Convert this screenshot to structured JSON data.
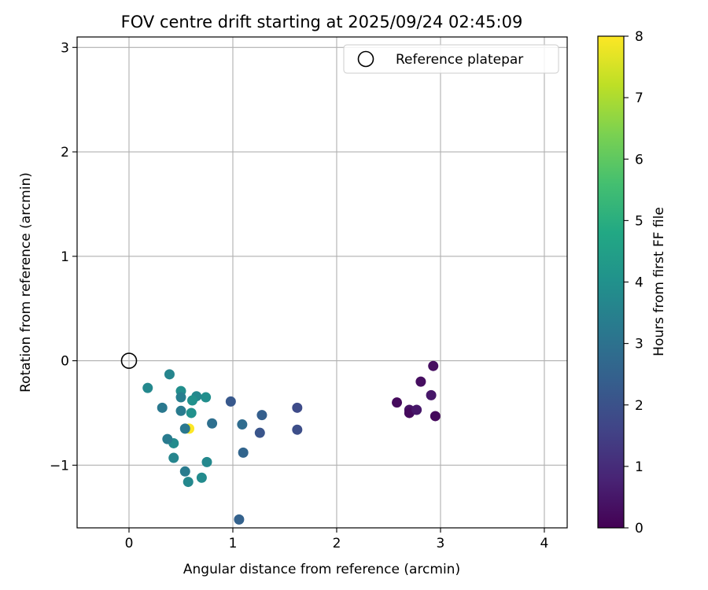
{
  "chart_data": {
    "type": "scatter",
    "title": "FOV centre drift starting at 2025/09/24 02:45:09",
    "xlabel": "Angular distance from reference (arcmin)",
    "ylabel": "Rotation from reference (arcmin)",
    "xlim": [
      -0.5,
      4.22
    ],
    "ylim": [
      -1.6,
      3.1
    ],
    "xticks": [
      0,
      1,
      2,
      3,
      4
    ],
    "yticks": [
      -1,
      0,
      1,
      2,
      3
    ],
    "xtick_labels": [
      "0",
      "1",
      "2",
      "3",
      "4"
    ],
    "ytick_labels": [
      "−1",
      "0",
      "1",
      "2",
      "3"
    ],
    "grid": true,
    "legend": {
      "position": "top-right",
      "label": "Reference platepar"
    },
    "reference_point": {
      "x": 0,
      "y": 0
    },
    "colorbar": {
      "label": "Hours from first FF file",
      "range": [
        0,
        8
      ],
      "ticks": [
        0,
        1,
        2,
        3,
        4,
        5,
        6,
        7,
        8
      ],
      "tick_labels": [
        "0",
        "1",
        "2",
        "3",
        "4",
        "5",
        "6",
        "7",
        "8"
      ],
      "colormap": "viridis"
    },
    "points": [
      {
        "x": 2.93,
        "y": -0.05,
        "h": 0.3
      },
      {
        "x": 2.81,
        "y": -0.2,
        "h": 0.3
      },
      {
        "x": 2.91,
        "y": -0.33,
        "h": 0.5
      },
      {
        "x": 2.58,
        "y": -0.4,
        "h": 0.2
      },
      {
        "x": 2.7,
        "y": -0.47,
        "h": 0.4
      },
      {
        "x": 2.7,
        "y": -0.5,
        "h": 0.2
      },
      {
        "x": 2.77,
        "y": -0.47,
        "h": 0.5
      },
      {
        "x": 2.95,
        "y": -0.53,
        "h": 0.2
      },
      {
        "x": 1.62,
        "y": -0.45,
        "h": 1.8
      },
      {
        "x": 1.62,
        "y": -0.66,
        "h": 1.9
      },
      {
        "x": 1.28,
        "y": -0.52,
        "h": 2.4
      },
      {
        "x": 1.26,
        "y": -0.69,
        "h": 2.1
      },
      {
        "x": 1.1,
        "y": -0.88,
        "h": 2.6
      },
      {
        "x": 1.09,
        "y": -0.61,
        "h": 2.8
      },
      {
        "x": 0.98,
        "y": -0.39,
        "h": 2.2
      },
      {
        "x": 1.06,
        "y": -1.52,
        "h": 2.5
      },
      {
        "x": 0.8,
        "y": -0.6,
        "h": 2.9
      },
      {
        "x": 0.74,
        "y": -0.35,
        "h": 3.9
      },
      {
        "x": 0.75,
        "y": -0.97,
        "h": 3.7
      },
      {
        "x": 0.7,
        "y": -1.12,
        "h": 3.8
      },
      {
        "x": 0.65,
        "y": -0.34,
        "h": 3.7
      },
      {
        "x": 0.61,
        "y": -0.38,
        "h": 4.0
      },
      {
        "x": 0.6,
        "y": -0.5,
        "h": 4.0
      },
      {
        "x": 0.58,
        "y": -0.65,
        "h": 8.0
      },
      {
        "x": 0.54,
        "y": -0.65,
        "h": 3.2
      },
      {
        "x": 0.54,
        "y": -1.06,
        "h": 3.3
      },
      {
        "x": 0.57,
        "y": -1.16,
        "h": 3.7
      },
      {
        "x": 0.5,
        "y": -0.29,
        "h": 3.9
      },
      {
        "x": 0.5,
        "y": -0.35,
        "h": 3.4
      },
      {
        "x": 0.5,
        "y": -0.48,
        "h": 3.3
      },
      {
        "x": 0.43,
        "y": -0.79,
        "h": 3.8
      },
      {
        "x": 0.43,
        "y": -0.93,
        "h": 3.6
      },
      {
        "x": 0.37,
        "y": -0.75,
        "h": 3.3
      },
      {
        "x": 0.32,
        "y": -0.45,
        "h": 3.2
      },
      {
        "x": 0.39,
        "y": -0.13,
        "h": 3.6
      },
      {
        "x": 0.18,
        "y": -0.26,
        "h": 3.7
      }
    ]
  }
}
